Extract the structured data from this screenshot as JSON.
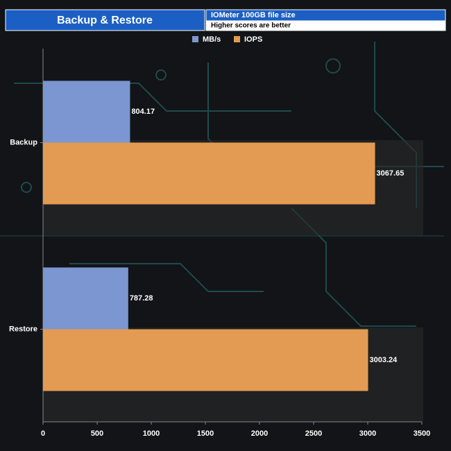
{
  "chart_data": {
    "type": "hbar",
    "title": "Backup & Restore",
    "subtitle": "IOMeter 100GB file size",
    "annotation": "Higher scores are better",
    "categories": [
      "Backup",
      "Restore"
    ],
    "series": [
      {
        "name": "MB/s",
        "color": "#7b96d0",
        "values": [
          804.17,
          787.28
        ]
      },
      {
        "name": "IOPS",
        "color": "#e39a52",
        "values": [
          3067.65,
          3003.24
        ]
      }
    ],
    "xlim": [
      0,
      3500
    ],
    "xticks": [
      0,
      500,
      1000,
      1500,
      2000,
      2500,
      3000,
      3500
    ],
    "legend": "top"
  }
}
